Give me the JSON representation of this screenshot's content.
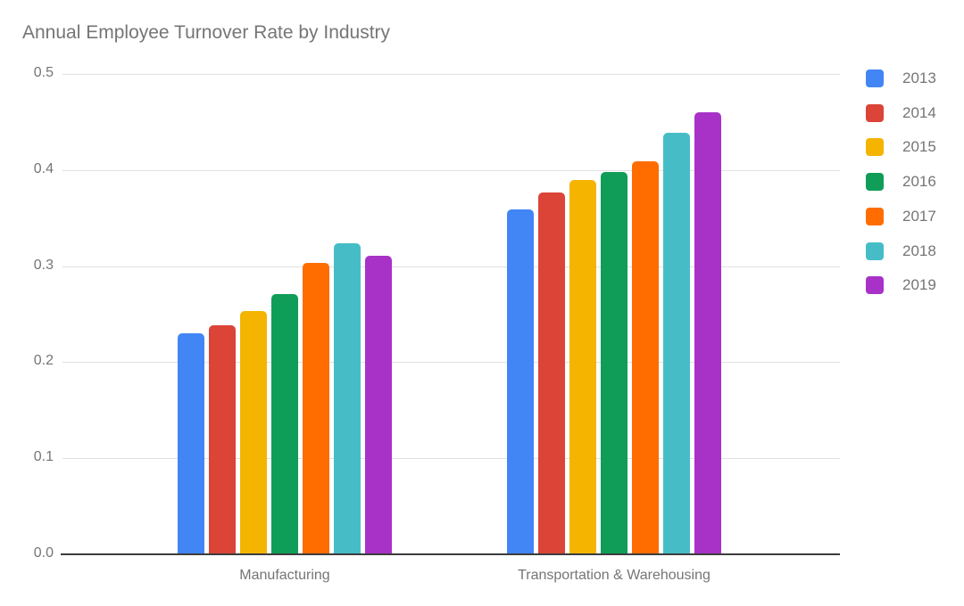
{
  "chart_data": {
    "type": "bar",
    "title": "Annual Employee Turnover Rate by Industry",
    "categories": [
      "Manufacturing",
      "Transportation & Warehousing"
    ],
    "series": [
      {
        "name": "2013",
        "color": "#4285F4",
        "values": [
          0.23,
          0.359
        ]
      },
      {
        "name": "2014",
        "color": "#DB4437",
        "values": [
          0.238,
          0.377
        ]
      },
      {
        "name": "2015",
        "color": "#F4B400",
        "values": [
          0.253,
          0.39
        ]
      },
      {
        "name": "2016",
        "color": "#0F9D58",
        "values": [
          0.271,
          0.398
        ]
      },
      {
        "name": "2017",
        "color": "#FF6D01",
        "values": [
          0.303,
          0.409
        ]
      },
      {
        "name": "2018",
        "color": "#46BDC6",
        "values": [
          0.324,
          0.439
        ]
      },
      {
        "name": "2019",
        "color": "#A832C8",
        "values": [
          0.311,
          0.46
        ]
      }
    ],
    "y_ticks": [
      "0.0",
      "0.1",
      "0.2",
      "0.3",
      "0.4",
      "0.5"
    ],
    "ylim": [
      0,
      0.5
    ],
    "grid": true,
    "legend_position": "right",
    "background_color": "#ffffff",
    "text_color": "#757575"
  }
}
